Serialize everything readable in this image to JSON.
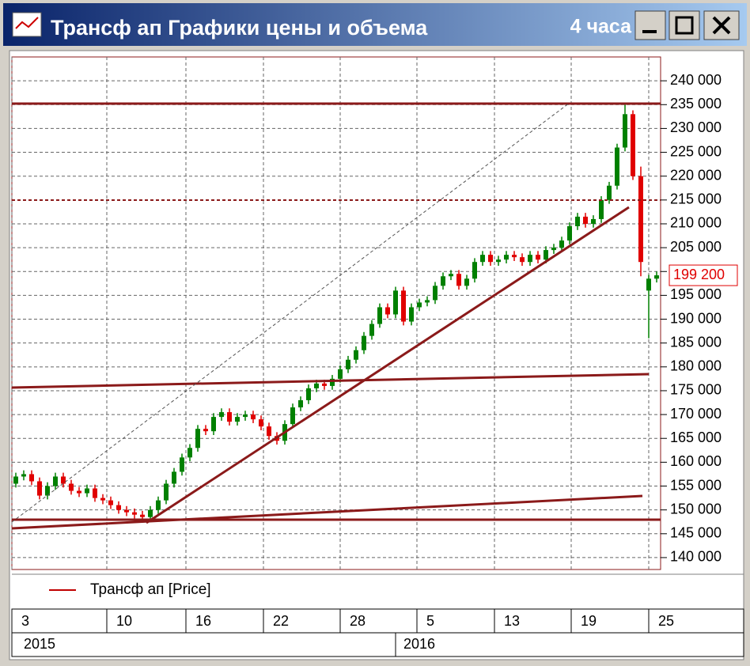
{
  "window": {
    "title": "Трансф ап Графики цены и объема",
    "interval": "4 часа"
  },
  "chart_data": {
    "type": "candlestick",
    "legend": "Трансф ап [Price]",
    "year_labels": [
      "2015",
      "2016"
    ],
    "up_color": "#008000",
    "down_color": "#e00000",
    "legend_color": "#c00000",
    "last_price": {
      "value": 199200,
      "label": "199 200"
    },
    "grid": true,
    "xlim": [
      -0.5,
      81.5
    ],
    "xticks": [
      {
        "value": -0.5,
        "label": "3"
      },
      {
        "value": 11.5,
        "label": "10"
      },
      {
        "value": 21.5,
        "label": "16"
      },
      {
        "value": 31.3,
        "label": "22"
      },
      {
        "value": 41,
        "label": "28"
      },
      {
        "value": 50.7,
        "label": "5"
      },
      {
        "value": 60.5,
        "label": "13"
      },
      {
        "value": 70.2,
        "label": "19"
      },
      {
        "value": 80,
        "label": "25"
      }
    ],
    "ylim": [
      137500,
      245000
    ],
    "yticks": [
      {
        "value": 140000,
        "label": "140 000"
      },
      {
        "value": 145000,
        "label": "145 000"
      },
      {
        "value": 150000,
        "label": "150 000"
      },
      {
        "value": 155000,
        "label": "155 000"
      },
      {
        "value": 160000,
        "label": "160 000"
      },
      {
        "value": 165000,
        "label": "165 000"
      },
      {
        "value": 170000,
        "label": "170 000"
      },
      {
        "value": 175000,
        "label": "175 000"
      },
      {
        "value": 180000,
        "label": "180 000"
      },
      {
        "value": 185000,
        "label": "185 000"
      },
      {
        "value": 190000,
        "label": "190 000"
      },
      {
        "value": 195000,
        "label": "195 000"
      },
      {
        "value": 200000,
        "label": "200 000"
      },
      {
        "value": 205000,
        "label": "205 000"
      },
      {
        "value": 210000,
        "label": "210 000"
      },
      {
        "value": 215000,
        "label": "215 000"
      },
      {
        "value": 220000,
        "label": "220 000"
      },
      {
        "value": 225000,
        "label": "225 000"
      },
      {
        "value": 230000,
        "label": "230 000"
      },
      {
        "value": 235000,
        "label": "235 000"
      },
      {
        "value": 240000,
        "label": "240 000"
      }
    ],
    "open": [
      155500,
      157000,
      157500,
      156000,
      153000,
      155000,
      157000,
      155500,
      154000,
      153500,
      154500,
      152500,
      152000,
      151000,
      150000,
      149500,
      149000,
      148500,
      150000,
      152000,
      155500,
      158000,
      161000,
      163000,
      167000,
      166500,
      169500,
      170500,
      168500,
      169500,
      170000,
      169000,
      167500,
      165500,
      164500,
      168000,
      171500,
      173000,
      175500,
      176500,
      176000,
      177500,
      179500,
      181500,
      183500,
      186500,
      189000,
      192500,
      191000,
      196000,
      189500,
      192500,
      193500,
      194000,
      197000,
      199000,
      199500,
      197000,
      198500,
      202000,
      203500,
      202000,
      202500,
      203500,
      203000,
      202000,
      203500,
      202500,
      204500,
      205000,
      206500,
      209500,
      211500,
      210000,
      211000,
      215000,
      218000,
      226000,
      233000,
      220000,
      196000,
      198500
    ],
    "close": [
      157000,
      157500,
      156000,
      153000,
      155000,
      157000,
      155500,
      154000,
      153500,
      154500,
      152500,
      152000,
      151000,
      150000,
      149500,
      149000,
      148500,
      150000,
      152000,
      155500,
      158000,
      161000,
      163000,
      167000,
      166500,
      169500,
      170500,
      168500,
      169500,
      170000,
      169000,
      167500,
      165500,
      164500,
      168000,
      171500,
      173000,
      175500,
      176500,
      176000,
      177500,
      179500,
      181500,
      183500,
      186500,
      189000,
      192500,
      191000,
      196000,
      189500,
      192500,
      193500,
      194000,
      197000,
      199000,
      199500,
      197000,
      198500,
      202000,
      203500,
      202000,
      202500,
      203500,
      203000,
      202000,
      203500,
      202500,
      204500,
      205000,
      206500,
      209500,
      211500,
      210000,
      211000,
      215000,
      218000,
      226000,
      233000,
      220000,
      202000,
      198500,
      199200
    ],
    "high": [
      157800,
      158300,
      158300,
      156800,
      155800,
      157800,
      157800,
      156300,
      154800,
      155300,
      155300,
      153300,
      152800,
      151800,
      150800,
      150300,
      149800,
      150800,
      152800,
      156300,
      158800,
      161800,
      163800,
      167800,
      167800,
      170300,
      171300,
      171300,
      170300,
      170800,
      170800,
      169800,
      168300,
      166300,
      168800,
      172300,
      173800,
      176300,
      177300,
      177300,
      178300,
      180300,
      182300,
      184300,
      187300,
      189800,
      193300,
      193300,
      196800,
      196800,
      193300,
      194300,
      194800,
      197800,
      199800,
      200300,
      200300,
      199300,
      202800,
      204300,
      204300,
      203300,
      204300,
      204300,
      203800,
      204300,
      204300,
      205300,
      205800,
      207300,
      210300,
      212300,
      212300,
      211800,
      215800,
      218800,
      226800,
      235000,
      233800,
      222000,
      199300,
      200000
    ],
    "low": [
      154700,
      156200,
      155200,
      152200,
      152200,
      154200,
      154700,
      153200,
      152700,
      152700,
      151700,
      151200,
      150200,
      149200,
      148700,
      148200,
      147700,
      147700,
      149200,
      151200,
      154700,
      157200,
      160200,
      162200,
      165700,
      165700,
      168700,
      167700,
      167700,
      168700,
      168200,
      166700,
      164700,
      163700,
      163700,
      167200,
      170700,
      172200,
      174700,
      175200,
      175200,
      176700,
      178700,
      180700,
      182700,
      185700,
      188200,
      190200,
      190200,
      188700,
      188700,
      191700,
      192700,
      193200,
      196200,
      198200,
      196200,
      196200,
      197700,
      201200,
      201200,
      201200,
      201700,
      202200,
      201200,
      201200,
      201700,
      201700,
      203700,
      204200,
      205700,
      208700,
      209200,
      209200,
      210200,
      214200,
      217200,
      225200,
      219200,
      199000,
      186000,
      197700
    ]
  }
}
